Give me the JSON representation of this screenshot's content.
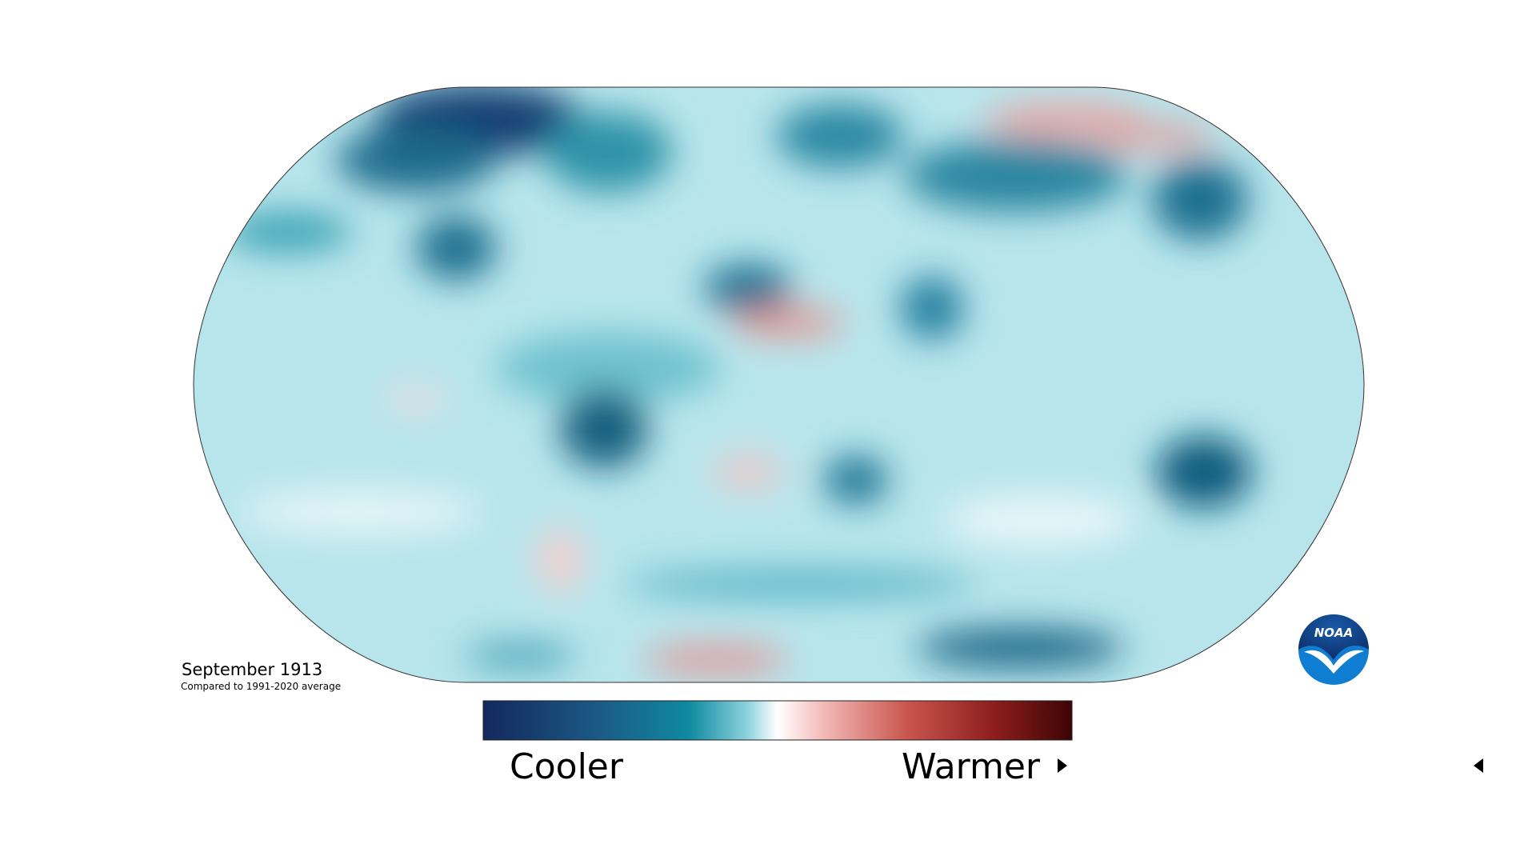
{
  "map": {
    "title": "September 1913",
    "subtitle": "Compared to 1991-2020 average"
  },
  "legend": {
    "low": "Cooler",
    "high": "Warmer"
  },
  "logo": {
    "text": "NOAA"
  }
}
